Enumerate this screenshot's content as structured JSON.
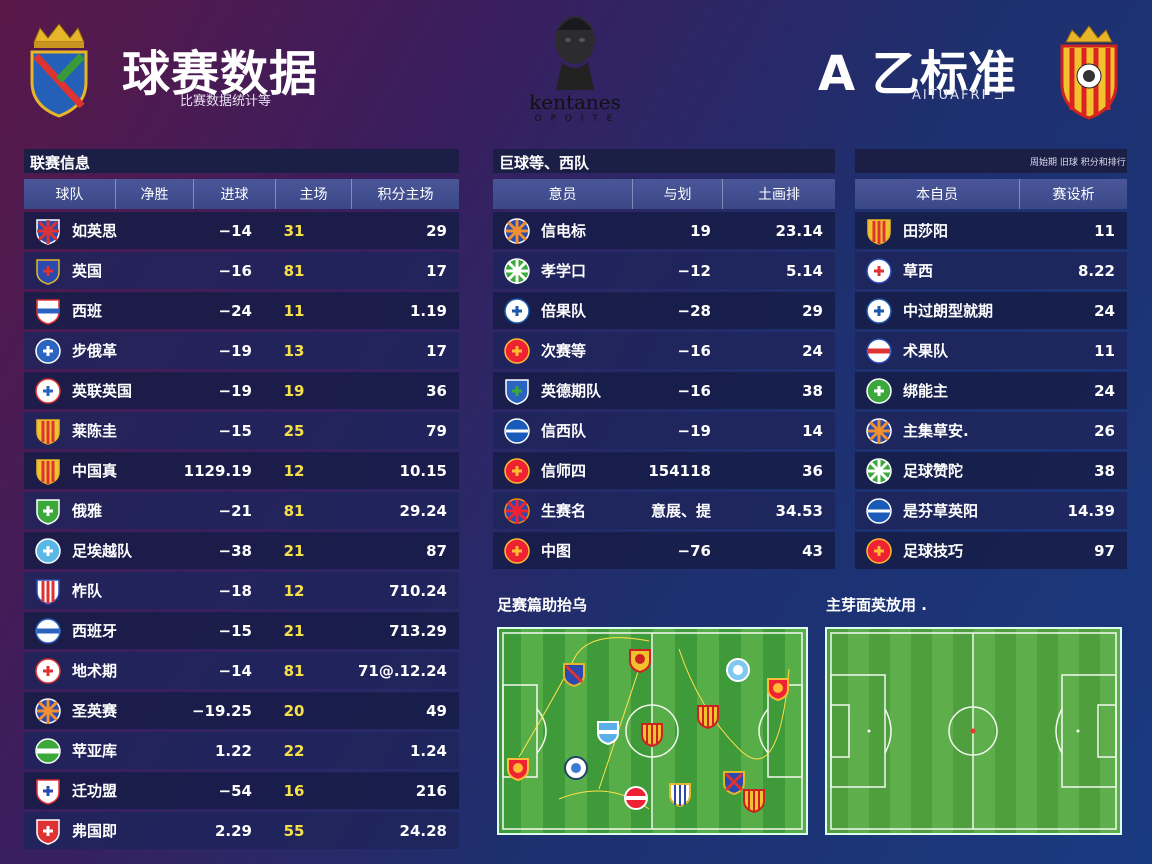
{
  "header": {
    "left_title": "球赛数据",
    "left_subtitle": "比赛数据统计等",
    "right_title": "A 乙标准",
    "right_subtitle": "AITUAFRI ⊐",
    "brand_name": "kentanes",
    "brand_sub": "O P O I T E"
  },
  "league": {
    "title": "联赛信息",
    "columns": [
      "球队",
      "净胜",
      "进球",
      "主场",
      "积分主场"
    ],
    "rows": [
      {
        "name": "如英思",
        "diff": "−14",
        "goals": "31",
        "pts": "29",
        "icon": "union-flag-icon"
      },
      {
        "name": "英国",
        "diff": "−16",
        "goals": "81",
        "pts": "17",
        "icon": "red-blue-shield-icon"
      },
      {
        "name": "西班",
        "diff": "−24",
        "goals": "11",
        "pts": "1.19",
        "icon": "blue-white-shield-icon"
      },
      {
        "name": "步俄革",
        "diff": "−19",
        "goals": "13",
        "pts": "17",
        "icon": "blue-ball-icon"
      },
      {
        "name": "英联英国",
        "diff": "−19",
        "goals": "19",
        "pts": "36",
        "icon": "blue-red-crest-icon"
      },
      {
        "name": "莱陈圭",
        "diff": "−15",
        "goals": "25",
        "pts": "79",
        "icon": "red-yellow-stripes-icon"
      },
      {
        "name": "中国真",
        "diff": "1129.19",
        "goals": "12",
        "pts": "10.15",
        "icon": "red-yellow-stripes-icon"
      },
      {
        "name": "俄雅",
        "diff": "−21",
        "goals": "81",
        "pts": "29.24",
        "icon": "green-white-shield-icon"
      },
      {
        "name": "足埃越队",
        "diff": "−38",
        "goals": "21",
        "pts": "87",
        "icon": "light-blue-crest-icon"
      },
      {
        "name": "柞队",
        "diff": "−18",
        "goals": "12",
        "pts": "710.24",
        "icon": "red-white-stripes-icon"
      },
      {
        "name": "西班牙",
        "diff": "−15",
        "goals": "21",
        "pts": "713.29",
        "icon": "blue-band-shield-icon"
      },
      {
        "name": "地术期",
        "diff": "−14",
        "goals": "81",
        "pts": "71@.12.24",
        "icon": "red-star-icon"
      },
      {
        "name": "圣英赛",
        "diff": "−19.25",
        "goals": "20",
        "pts": "49",
        "icon": "orange-blue-cross-icon"
      },
      {
        "name": "苹亚库",
        "diff": "1.22",
        "goals": "22",
        "pts": "1.24",
        "icon": "green-band-icon"
      },
      {
        "name": "迁功盟",
        "diff": "−54",
        "goals": "16",
        "pts": "216",
        "icon": "white-red-blue-shield-icon"
      },
      {
        "name": "弗国即",
        "diff": "2.29",
        "goals": "55",
        "pts": "24.28",
        "icon": "red-white-shield-icon"
      }
    ]
  },
  "mid": {
    "title": "巨球等、西队",
    "columns": [
      "意员",
      "与划",
      "土画排"
    ],
    "rows": [
      {
        "name": "信电标",
        "a": "19",
        "b": "23.14",
        "icon": "orange-blue-cross-icon"
      },
      {
        "name": "孝学口",
        "a": "−12",
        "b": "5.14",
        "icon": "green-cross-icon"
      },
      {
        "name": "倍果队",
        "a": "−28",
        "b": "29",
        "icon": "blue-ring-icon"
      },
      {
        "name": "次赛等",
        "a": "−16",
        "b": "24",
        "icon": "red-lion-icon"
      },
      {
        "name": "英德期队",
        "a": "−16",
        "b": "38",
        "icon": "blue-green-shield-icon"
      },
      {
        "name": "信西队",
        "a": "−19",
        "b": "14",
        "icon": "blue-tower-icon"
      },
      {
        "name": "信师四",
        "a": "154118",
        "b": "36",
        "icon": "red-lion-icon"
      },
      {
        "name": "生赛名",
        "a": "意展、提",
        "b": "34.53",
        "icon": "red-blue-cross-icon"
      },
      {
        "name": "中图",
        "a": "−76",
        "b": "43",
        "icon": "red-lion-icon"
      }
    ]
  },
  "right": {
    "note": "周始期 旧球 积分和排行",
    "columns": [
      "本自员",
      "赛设析"
    ],
    "rows": [
      {
        "name": "田莎阳",
        "v": "11",
        "icon": "red-yellow-stripes-icon"
      },
      {
        "name": "草西",
        "v": "8.22",
        "icon": "red-white-blue-icon"
      },
      {
        "name": "中过朗型就期",
        "v": "24",
        "icon": "blue-ring-icon"
      },
      {
        "name": "术果队",
        "v": "11",
        "icon": "red-blue-band-icon"
      },
      {
        "name": "绑能主",
        "v": "24",
        "icon": "green-arrow-icon"
      },
      {
        "name": "主集草安.",
        "v": "26",
        "icon": "orange-blue-cross-icon"
      },
      {
        "name": "足球赞陀",
        "v": "38",
        "icon": "green-cross-icon"
      },
      {
        "name": "是芬草英阳",
        "v": "14.39",
        "icon": "blue-tower-icon"
      },
      {
        "name": "足球技巧",
        "v": "97",
        "icon": "red-lion-icon"
      }
    ]
  },
  "formation": {
    "title": "足赛篇助抬乌"
  },
  "field": {
    "title": "主芽面英放用 ."
  }
}
